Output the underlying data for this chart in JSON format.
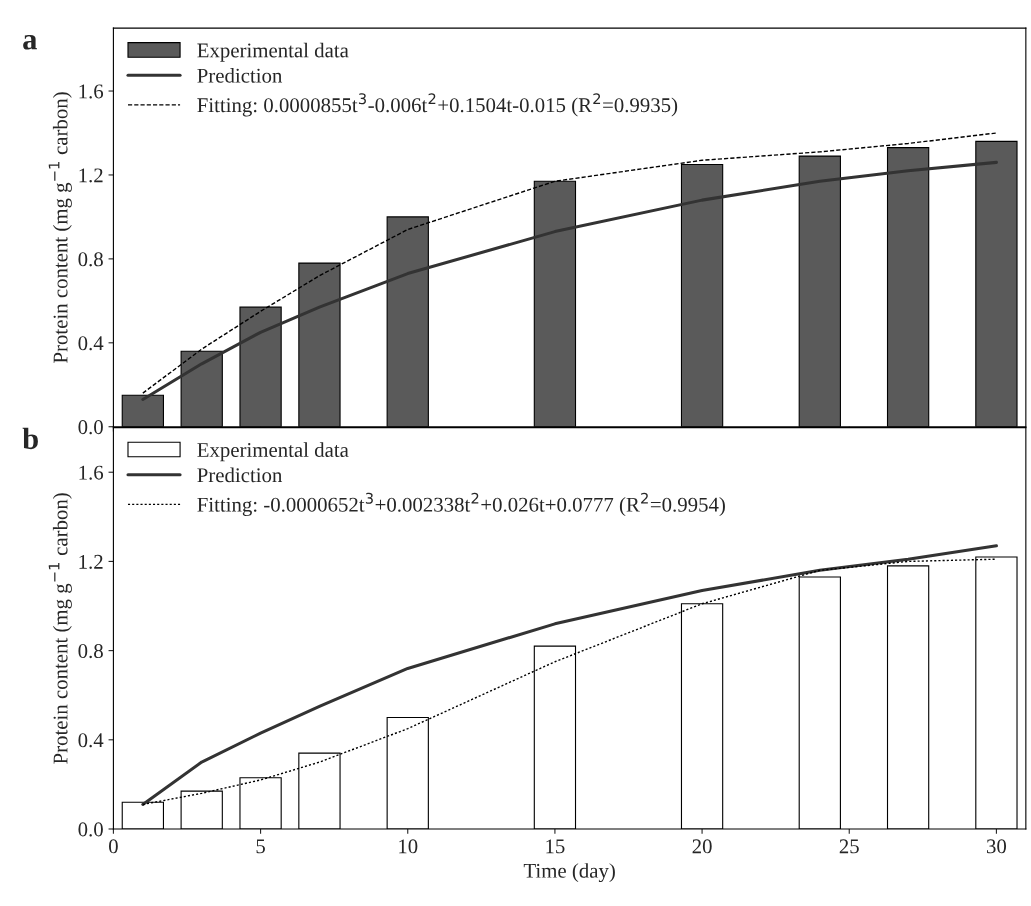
{
  "chart_data": [
    {
      "type": "bar",
      "title": "a",
      "ylabel": "Protein content (mg g$^{−1}$ carbon)",
      "xlim": [
        0,
        31
      ],
      "ylim": [
        0,
        1.9
      ],
      "yticks": [
        {
          "value": 0,
          "label": "0.0"
        },
        0.4,
        0.8,
        1.2,
        1.6
      ],
      "xticks": [
        0,
        5,
        10,
        15,
        20,
        25,
        30
      ],
      "tick_labels": "y",
      "legend": "top left",
      "grid": false,
      "series": [
        {
          "name": "Experimental data",
          "color": "#5a5a5a",
          "x": [
            1,
            3,
            5,
            7,
            10,
            15,
            20,
            24,
            27,
            30
          ],
          "values": [
            0.15,
            0.36,
            0.57,
            0.78,
            1.0,
            1.17,
            1.25,
            1.29,
            1.33,
            1.36
          ]
        },
        {
          "name": "Prediction",
          "type": "line",
          "line_style": "solid",
          "color": "#333333",
          "x": [
            1,
            3,
            5,
            7,
            10,
            15,
            20,
            24,
            27,
            30
          ],
          "values": [
            0.13,
            0.3,
            0.45,
            0.57,
            0.73,
            0.93,
            1.08,
            1.17,
            1.22,
            1.26
          ]
        },
        {
          "name": "Fitting: 0.0000855t$^{3}$-0.006t$^{2}$+0.1504t-0.015 (R$^{2}$=0.9935)",
          "type": "line",
          "line_style": "dashed",
          "color": "#000000",
          "x": [
            1,
            3,
            5,
            7,
            10,
            15,
            20,
            24,
            27,
            30
          ],
          "values": [
            0.16,
            0.37,
            0.55,
            0.72,
            0.94,
            1.17,
            1.27,
            1.31,
            1.35,
            1.4
          ]
        }
      ]
    },
    {
      "type": "bar",
      "title": "b",
      "xlabel": "Time (day)",
      "ylabel": "Protein content (mg g$^{−1}$ carbon)",
      "xlim": [
        0,
        31
      ],
      "ylim": [
        0,
        1.8
      ],
      "yticks": [
        {
          "value": 0,
          "label": "0.0"
        },
        0.4,
        0.8,
        1.2,
        1.6
      ],
      "xticks": [
        0,
        5,
        10,
        15,
        20,
        25,
        30
      ],
      "legend": "top left",
      "grid": false,
      "series": [
        {
          "name": "Experimental data",
          "color": "#ffffff",
          "x": [
            1,
            3,
            5,
            7,
            10,
            15,
            20,
            24,
            27,
            30
          ],
          "values": [
            0.12,
            0.17,
            0.23,
            0.34,
            0.5,
            0.82,
            1.01,
            1.13,
            1.18,
            1.22
          ]
        },
        {
          "name": "Prediction",
          "type": "line",
          "line_style": "solid",
          "color": "#333333",
          "x": [
            1,
            3,
            5,
            7,
            10,
            15,
            20,
            24,
            27,
            30
          ],
          "values": [
            0.11,
            0.3,
            0.43,
            0.55,
            0.72,
            0.92,
            1.07,
            1.16,
            1.21,
            1.27
          ]
        },
        {
          "name": "Fitting: -0.0000652t$^{3}$+0.002338t$^{2}$+0.026t+0.0777 (R$^{2}$=0.9954)",
          "type": "line",
          "line_style": "dotted",
          "color": "#000000",
          "x": [
            1,
            3,
            5,
            7,
            10,
            15,
            20,
            24,
            27,
            30
          ],
          "values": [
            0.11,
            0.16,
            0.22,
            0.3,
            0.45,
            0.75,
            1.01,
            1.16,
            1.2,
            1.21
          ]
        }
      ]
    }
  ]
}
